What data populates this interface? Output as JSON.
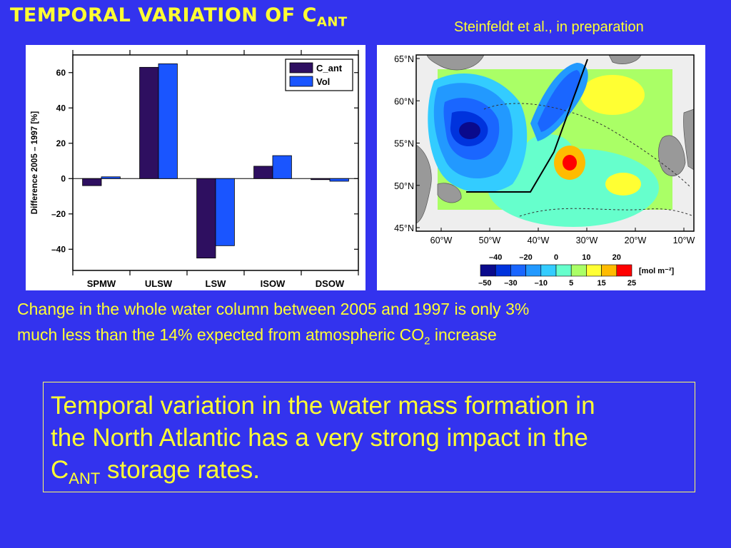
{
  "slide": {
    "title_main": "TEMPORAL VARIATION OF C",
    "title_sub": "ANT",
    "credit": "Steinfeldt et al., in preparation",
    "note_line1": "Change in the whole water column between 2005 and 1997 is only 3%",
    "note_line2": "much less than the 14% expected from atmospheric CO",
    "note_sub": "2",
    "note_tail": " increase",
    "box_line1": "Temporal variation in the water mass formation in",
    "box_line2": "the North Atlantic has a very strong impact in the",
    "box_c": "C",
    "box_sub": "ANT",
    "box_tail": " storage rates."
  },
  "chart_data": [
    {
      "type": "bar",
      "categories": [
        "SPMW",
        "ULSW",
        "LSW",
        "ISOW",
        "DSOW"
      ],
      "series": [
        {
          "name": "C_ant",
          "values": [
            -4,
            63,
            -45,
            7,
            -0.5
          ],
          "color": "#2e0f60"
        },
        {
          "name": "Vol",
          "values": [
            1,
            65,
            -38,
            13,
            -1.5
          ],
          "color": "#1a55ff"
        }
      ],
      "ylabel": "Difference 2005 – 1997 [%]",
      "ylim": [
        -52,
        70
      ],
      "yticks": [
        -40,
        -20,
        0,
        20,
        40,
        60
      ],
      "ytick_labels": [
        "–40",
        "–20",
        "0",
        "20",
        "40",
        "60"
      ],
      "legend_position": "top-right"
    },
    {
      "type": "heatmap",
      "lat_labels": [
        "65°N",
        "60°N",
        "55°N",
        "50°N",
        "45°N"
      ],
      "lon_labels": [
        "60°W",
        "50°W",
        "40°W",
        "30°W",
        "20°W",
        "10°W"
      ],
      "colorbar_top_labels": [
        "–40",
        "–20",
        "0",
        "10",
        "20"
      ],
      "colorbar_bottom_labels": [
        "–50",
        "–30",
        "–10",
        "5",
        "15",
        "25"
      ],
      "colorbar_unit": "[mol m⁻²]",
      "colorbar_colors": [
        "#0a0a8c",
        "#0033dd",
        "#1a66ff",
        "#2299ff",
        "#33ccff",
        "#66ffcc",
        "#aaff66",
        "#ffff33",
        "#ffbb00",
        "#ff0000"
      ]
    }
  ]
}
